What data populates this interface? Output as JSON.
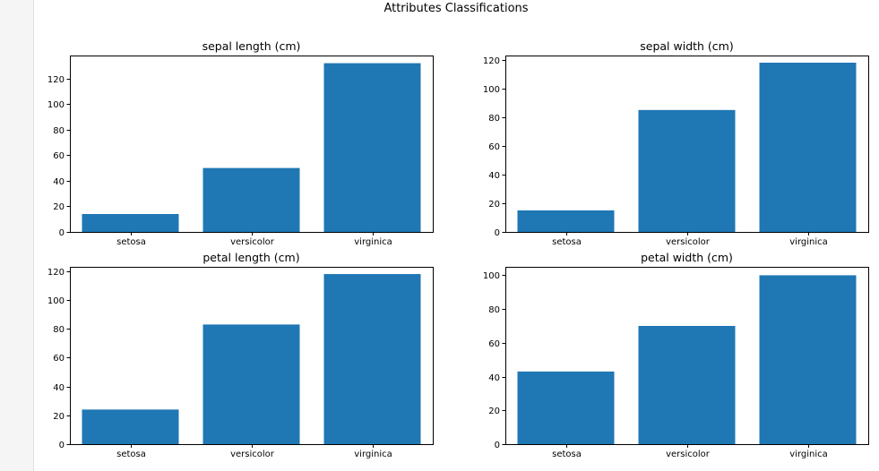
{
  "figure": {
    "suptitle": "Attributes Classifications"
  },
  "colors": {
    "bar": "#1f77b4",
    "axis": "#000000",
    "gutter": "#f5f5f5"
  },
  "chart_data": [
    {
      "type": "bar",
      "title": "sepal length (cm)",
      "categories": [
        "setosa",
        "versicolor",
        "virginica"
      ],
      "values": [
        14,
        50,
        132
      ],
      "ylim": [
        0,
        138
      ],
      "yticks": [
        0,
        20,
        40,
        60,
        80,
        100,
        120
      ],
      "grid": false
    },
    {
      "type": "bar",
      "title": "sepal width (cm)",
      "categories": [
        "setosa",
        "versicolor",
        "virginica"
      ],
      "values": [
        15,
        85,
        118
      ],
      "ylim": [
        0,
        123
      ],
      "yticks": [
        0,
        20,
        40,
        60,
        80,
        100,
        120
      ],
      "grid": false
    },
    {
      "type": "bar",
      "title": "petal length (cm)",
      "categories": [
        "setosa",
        "versicolor",
        "virginica"
      ],
      "values": [
        24,
        83,
        118
      ],
      "ylim": [
        0,
        123
      ],
      "yticks": [
        0,
        20,
        40,
        60,
        80,
        100,
        120
      ],
      "grid": false
    },
    {
      "type": "bar",
      "title": "petal width (cm)",
      "categories": [
        "setosa",
        "versicolor",
        "virginica"
      ],
      "values": [
        43,
        70,
        100
      ],
      "ylim": [
        0,
        105
      ],
      "yticks": [
        0,
        20,
        40,
        60,
        80,
        100
      ],
      "grid": false
    }
  ]
}
